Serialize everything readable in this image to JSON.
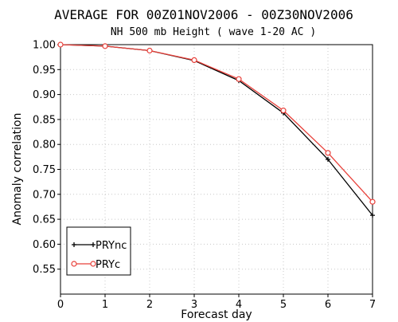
{
  "chart_data": {
    "type": "line",
    "title": "AVERAGE FOR 00Z01NOV2006 - 00Z30NOV2006",
    "subtitle": "NH 500 mb Height ( wave 1-20 AC )",
    "xlabel": "Forecast day",
    "ylabel": "Anomaly correlation",
    "xlim": [
      0,
      7
    ],
    "ylim": [
      0.5,
      1.0
    ],
    "x_ticks": [
      0,
      1,
      2,
      3,
      4,
      5,
      6,
      7
    ],
    "y_ticks": [
      0.55,
      0.6,
      0.65,
      0.7,
      0.75,
      0.8,
      0.85,
      0.9,
      0.95,
      1.0
    ],
    "y_tick_labels": [
      "0.55",
      "0.60",
      "0.65",
      "0.70",
      "0.75",
      "0.80",
      "0.85",
      "0.90",
      "0.95",
      "1.00"
    ],
    "grid": true,
    "legend_position": "bottom-left",
    "x": [
      0,
      1,
      2,
      3,
      4,
      5,
      6,
      7
    ],
    "series": [
      {
        "name": "PRYnc",
        "color": "#000000",
        "marker": "plus",
        "values": [
          1.0,
          0.997,
          0.988,
          0.968,
          0.928,
          0.863,
          0.77,
          0.658
        ]
      },
      {
        "name": "PRYc",
        "color": "#e8403a",
        "marker": "circle",
        "values": [
          1.0,
          0.997,
          0.988,
          0.969,
          0.931,
          0.868,
          0.783,
          0.685
        ]
      }
    ]
  }
}
